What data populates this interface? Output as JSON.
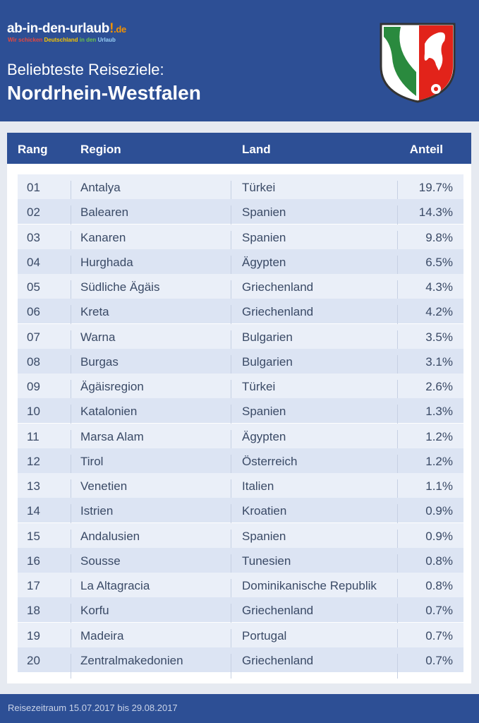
{
  "logo": {
    "name": "ab-in-den-urlaub",
    "mark": "!",
    "tld": ".de",
    "tagline": [
      "Wir schicken",
      "Deutschland",
      "in den",
      "Urlaub"
    ]
  },
  "header": {
    "subtitle": "Beliebteste Reiseziele:",
    "title": "Nordrhein-Westfalen"
  },
  "table": {
    "columns": [
      "Rang",
      "Region",
      "Land",
      "Anteil"
    ],
    "rows": [
      [
        "01",
        "Antalya",
        "Türkei",
        "19.7%"
      ],
      [
        "02",
        "Balearen",
        "Spanien",
        "14.3%"
      ],
      [
        "03",
        "Kanaren",
        "Spanien",
        "9.8%"
      ],
      [
        "04",
        "Hurghada",
        "Ägypten",
        "6.5%"
      ],
      [
        "05",
        "Südliche Ägäis",
        "Griechenland",
        "4.3%"
      ],
      [
        "06",
        "Kreta",
        "Griechenland",
        "4.2%"
      ],
      [
        "07",
        "Warna",
        "Bulgarien",
        "3.5%"
      ],
      [
        "08",
        "Burgas",
        "Bulgarien",
        "3.1%"
      ],
      [
        "09",
        "Ägäisregion",
        "Türkei",
        "2.6%"
      ],
      [
        "10",
        "Katalonien",
        "Spanien",
        "1.3%"
      ],
      [
        "11",
        "Marsa Alam",
        "Ägypten",
        "1.2%"
      ],
      [
        "12",
        "Tirol",
        "Österreich",
        "1.2%"
      ],
      [
        "13",
        "Venetien",
        "Italien",
        "1.1%"
      ],
      [
        "14",
        "Istrien",
        "Kroatien",
        "0.9%"
      ],
      [
        "15",
        "Andalusien",
        "Spanien",
        "0.9%"
      ],
      [
        "16",
        "Sousse",
        "Tunesien",
        "0.8%"
      ],
      [
        "17",
        "La Altagracia",
        "Dominikanische Republik",
        "0.8%"
      ],
      [
        "18",
        "Korfu",
        "Griechenland",
        "0.7%"
      ],
      [
        "19",
        "Madeira",
        "Portugal",
        "0.7%"
      ],
      [
        "20",
        "Zentralmakedonien",
        "Griechenland",
        "0.7%"
      ]
    ]
  },
  "footer": {
    "text": "Reisezeitraum 15.07.2017 bis 29.08.2017"
  }
}
